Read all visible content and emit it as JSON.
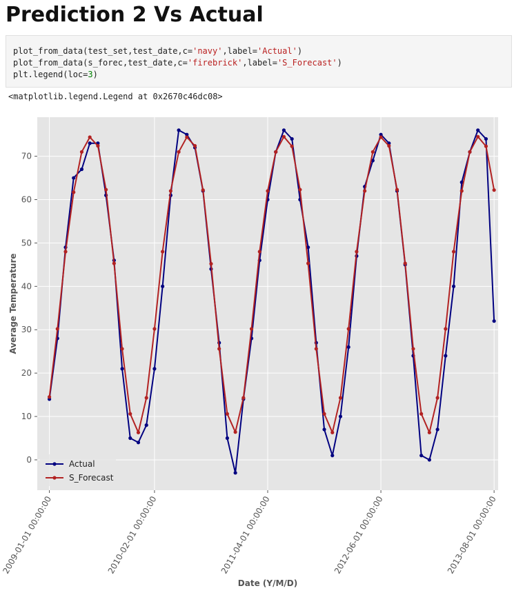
{
  "page": {
    "title": "Prediction 2 Vs Actual",
    "code_lines": [
      [
        {
          "t": "plot_from_data(test_set,test_date,c="
        },
        {
          "t": "'navy'",
          "c": "str"
        },
        {
          "t": ",label="
        },
        {
          "t": "'Actual'",
          "c": "str"
        },
        {
          "t": ")"
        }
      ],
      [
        {
          "t": "plot_from_data(s_forec,test_date,c="
        },
        {
          "t": "'firebrick'",
          "c": "str"
        },
        {
          "t": ",label="
        },
        {
          "t": "'S_Forecast'",
          "c": "str"
        },
        {
          "t": ")"
        }
      ],
      [
        {
          "t": "plt.legend(loc="
        },
        {
          "t": "3",
          "c": "num"
        },
        {
          "t": ")"
        }
      ]
    ],
    "output_text": "<matplotlib.legend.Legend at 0x2670c46dc08>"
  },
  "chart_data": {
    "type": "line",
    "xlabel": "Date (Y/M/D)",
    "ylabel": "Average Temperature",
    "ylim": [
      -7,
      79
    ],
    "yticks": [
      0,
      10,
      20,
      30,
      40,
      50,
      60,
      70
    ],
    "x_range": [
      -1.5,
      55.5
    ],
    "xtick_positions": [
      0,
      13,
      27,
      41,
      55
    ],
    "xtick_labels": [
      "2009-01-01 00:00:00",
      "2010-02-01 00:00:00",
      "2011-04-01 00:00:00",
      "2012-06-01 00:00:00",
      "2013-08-01 00:00:00"
    ],
    "grid": true,
    "legend_location": "lower left",
    "series": [
      {
        "name": "Actual",
        "color": "#000080",
        "values": [
          14,
          28,
          49,
          65,
          67,
          73,
          73,
          61,
          46,
          21,
          5,
          4,
          8,
          21,
          40,
          61,
          76,
          75,
          72,
          62,
          44,
          27,
          5,
          -3,
          14,
          28,
          46,
          60,
          71,
          76,
          74,
          60,
          49,
          27,
          7,
          1,
          10,
          26,
          47,
          63,
          69,
          75,
          73,
          62,
          45,
          24,
          1,
          0,
          7,
          24,
          40,
          64,
          71,
          76,
          74,
          32
        ]
      },
      {
        "name": "S_Forecast",
        "color": "#b22222",
        "values": [
          14.5,
          30.2,
          48,
          61.7,
          71,
          74.4,
          72.4,
          62.3,
          45.3,
          25.6,
          10.6,
          6.3,
          14.3,
          30.2,
          48,
          62,
          71,
          74.4,
          72.4,
          62.2,
          45.2,
          25.6,
          10.6,
          6.4,
          14.3,
          30.2,
          48,
          62,
          71,
          74.5,
          72.3,
          62.3,
          45.3,
          25.6,
          10.6,
          6.3,
          14.3,
          30.2,
          48,
          62,
          71,
          74.4,
          72.4,
          62.3,
          45.3,
          25.6,
          10.6,
          6.3,
          14.3,
          30.2,
          48,
          62,
          71,
          74.5,
          72.3,
          62.2
        ]
      }
    ]
  }
}
